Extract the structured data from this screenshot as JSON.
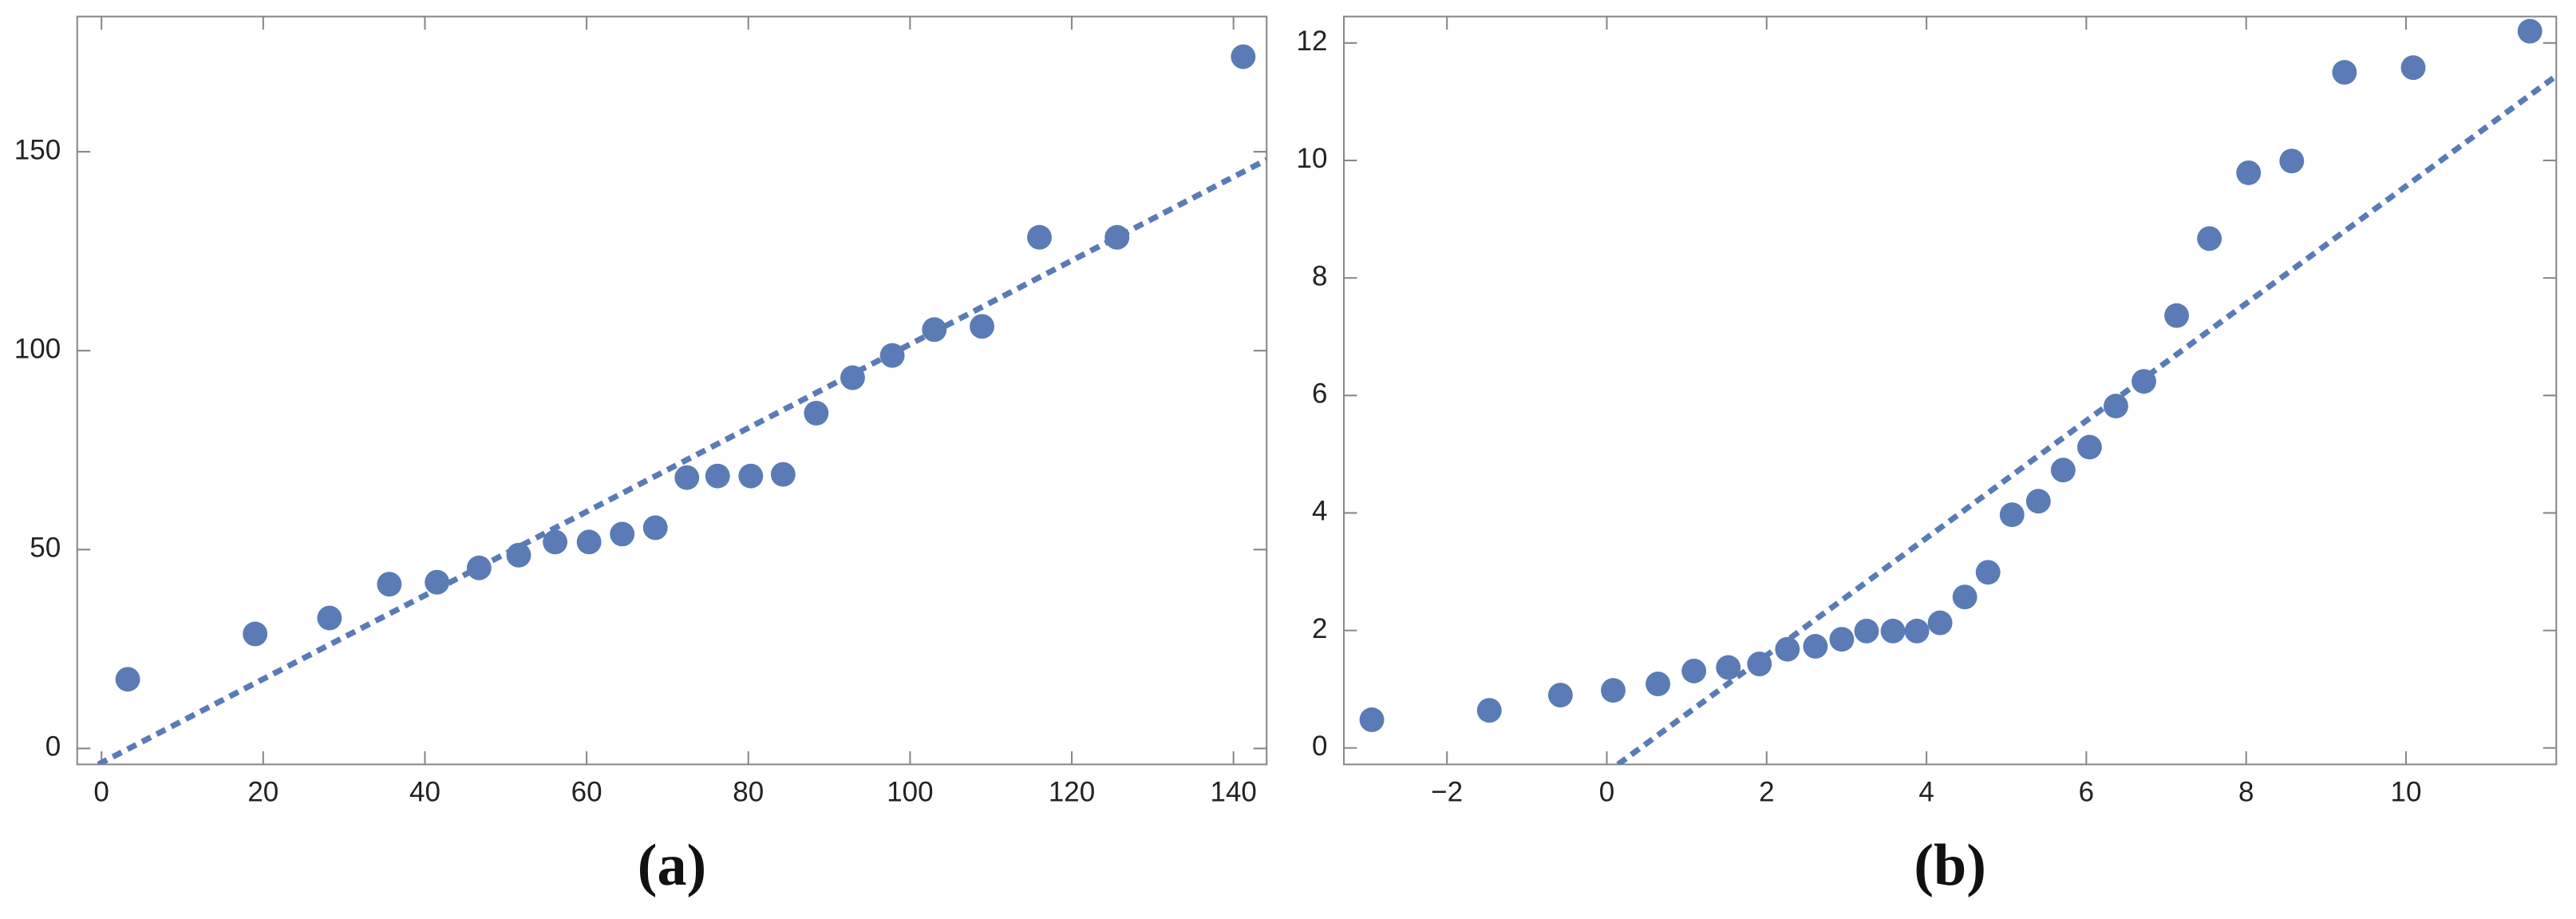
{
  "chart_data": [
    {
      "type": "scatter",
      "caption": "(a)",
      "color": "#5a7bb5",
      "x": [
        3.25,
        19,
        28.2,
        35.6,
        41.5,
        46.7,
        51.6,
        56.1,
        60.3,
        64.4,
        68.5,
        72.4,
        76.2,
        80.3,
        84.3,
        88.4,
        92.9,
        97.8,
        103,
        108.9,
        116,
        125.6,
        141.2
      ],
      "values": [
        17.4,
        28.8,
        32.8,
        41.3,
        41.8,
        45.4,
        48.6,
        51.9,
        51.9,
        53.9,
        55.5,
        68.1,
        68.5,
        68.5,
        68.9,
        84.3,
        93.2,
        98.8,
        105.3,
        106.1,
        128.5,
        128.5,
        173.9
      ],
      "fit": {
        "x": [
          -0.4,
          144.1
        ],
        "values": [
          -4,
          148
        ],
        "dashed": true
      },
      "xlim": [
        -3,
        144.1
      ],
      "ylim": [
        -4,
        184
      ],
      "xticks": [
        0,
        20,
        40,
        60,
        80,
        100,
        120,
        140
      ],
      "yticks": [
        0,
        50,
        100,
        150
      ]
    },
    {
      "type": "scatter",
      "caption": "(b)",
      "color": "#5a7bb5",
      "x": [
        -2.94,
        -1.47,
        -0.58,
        0.08,
        0.64,
        1.09,
        1.52,
        1.91,
        2.26,
        2.61,
        2.94,
        3.25,
        3.58,
        3.88,
        4.17,
        4.48,
        4.77,
        5.07,
        5.4,
        5.71,
        6.04,
        6.37,
        6.72,
        7.13,
        7.54,
        8.03,
        8.57,
        9.23,
        10.09,
        11.55
      ],
      "values": [
        0.48,
        0.64,
        0.9,
        0.98,
        1.09,
        1.31,
        1.37,
        1.43,
        1.68,
        1.73,
        1.85,
        1.99,
        1.99,
        1.99,
        2.13,
        2.57,
        2.99,
        3.97,
        4.2,
        4.73,
        5.12,
        5.82,
        6.24,
        7.36,
        8.67,
        9.79,
        9.99,
        11.5,
        11.58,
        12.2
      ],
      "fit": {
        "x": [
          0.14,
          11.88
        ],
        "values": [
          -0.28,
          11.44
        ],
        "dashed": true
      },
      "xlim": [
        -3.29,
        11.88
      ],
      "ylim": [
        -0.28,
        12.45
      ],
      "xticks": [
        {
          "value": -2,
          "label": "−2"
        },
        0,
        2,
        4,
        6,
        8,
        10
      ],
      "yticks": [
        0,
        2,
        4,
        6,
        8,
        10,
        12
      ]
    }
  ]
}
